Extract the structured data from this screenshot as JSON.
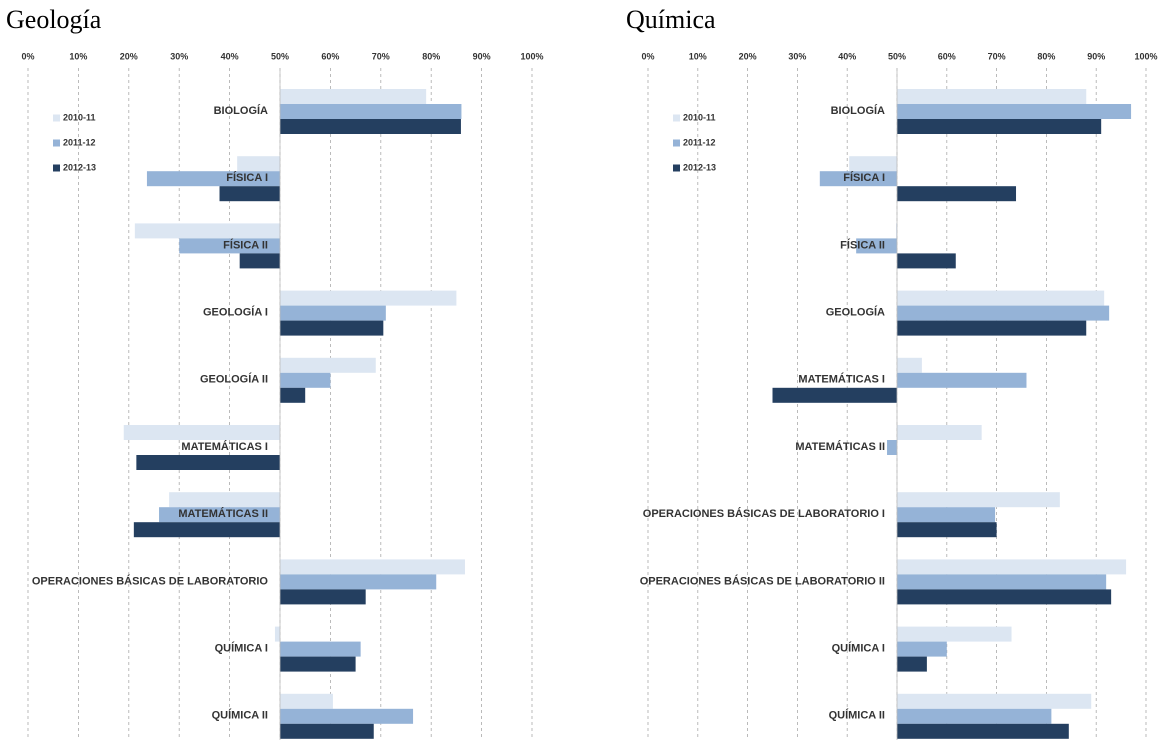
{
  "chart_data": [
    {
      "type": "bar",
      "orientation": "horizontal",
      "baseline": 50,
      "title": "Geología",
      "categories": [
        "BIOLOGÍA",
        "FÍSICA I",
        "FÍSICA II",
        "GEOLOGÍA I",
        "GEOLOGÍA II",
        "MATEMÁTICAS I",
        "MATEMÁTICAS II",
        "OPERACIONES BÁSICAS DE LABORATORIO",
        "QUÍMICA I",
        "QUÍMICA II"
      ],
      "series": [
        {
          "name": "2010-11",
          "color": "#dce6f2",
          "values": [
            79,
            41.5,
            21.2,
            85,
            69,
            19,
            28,
            86.7,
            49,
            60.5
          ]
        },
        {
          "name": "2011-12",
          "color": "#95b3d7",
          "values": [
            86,
            23.6,
            30,
            71,
            60,
            null,
            26,
            81,
            66,
            76.4
          ]
        },
        {
          "name": "2012-13",
          "color": "#243f60",
          "values": [
            85.9,
            38,
            42,
            70.5,
            55,
            21.5,
            21,
            67,
            65,
            68.6
          ]
        }
      ],
      "xlim": [
        0,
        100
      ],
      "xticks": [
        {
          "value": 0,
          "label": "0%"
        },
        {
          "value": 10,
          "label": "10%"
        },
        {
          "value": 20,
          "label": "20%"
        },
        {
          "value": 30,
          "label": "30%"
        },
        {
          "value": 40,
          "label": "40%"
        },
        {
          "value": 50,
          "label": "50%"
        },
        {
          "value": 60,
          "label": "60%"
        },
        {
          "value": 70,
          "label": "70%"
        },
        {
          "value": 80,
          "label": "80%"
        },
        {
          "value": 90,
          "label": "90%"
        },
        {
          "value": 100,
          "label": "100%"
        }
      ],
      "grid": true,
      "legend": "top-left"
    },
    {
      "type": "bar",
      "orientation": "horizontal",
      "baseline": 50,
      "title": "Química",
      "categories": [
        "BIOLOGÍA",
        "FÍSICA I",
        "FÍSICA II",
        "GEOLOGÍA",
        "MATEMÁTICAS I",
        "MATEMÁTICAS II",
        "OPERACIONES BÁSICAS DE LABORATORIO I",
        "OPERACIONES BÁSICAS DE LABORATORIO II",
        "QUÍMICA I",
        "QUÍMICA II"
      ],
      "series": [
        {
          "name": "2010-11",
          "color": "#dce6f2",
          "values": [
            88,
            40.4,
            49.8,
            91.6,
            55,
            67,
            82.7,
            96,
            73,
            89
          ]
        },
        {
          "name": "2011-12",
          "color": "#95b3d7",
          "values": [
            97,
            34.5,
            41.8,
            92.6,
            76,
            48,
            69.7,
            92,
            60,
            81
          ]
        },
        {
          "name": "2012-13",
          "color": "#243f60",
          "values": [
            91,
            73.9,
            61.8,
            88,
            25,
            null,
            70,
            93,
            56,
            84.5
          ]
        }
      ],
      "xlim": [
        0,
        100
      ],
      "xticks": [
        {
          "value": 0,
          "label": "0%"
        },
        {
          "value": 10,
          "label": "10%"
        },
        {
          "value": 20,
          "label": "20%"
        },
        {
          "value": 30,
          "label": "30%"
        },
        {
          "value": 40,
          "label": "40%"
        },
        {
          "value": 50,
          "label": "50%"
        },
        {
          "value": 60,
          "label": "60%"
        },
        {
          "value": 70,
          "label": "70%"
        },
        {
          "value": 80,
          "label": "80%"
        },
        {
          "value": 90,
          "label": "90%"
        },
        {
          "value": 100,
          "label": "100%"
        }
      ],
      "grid": true,
      "legend": "top-left"
    }
  ]
}
